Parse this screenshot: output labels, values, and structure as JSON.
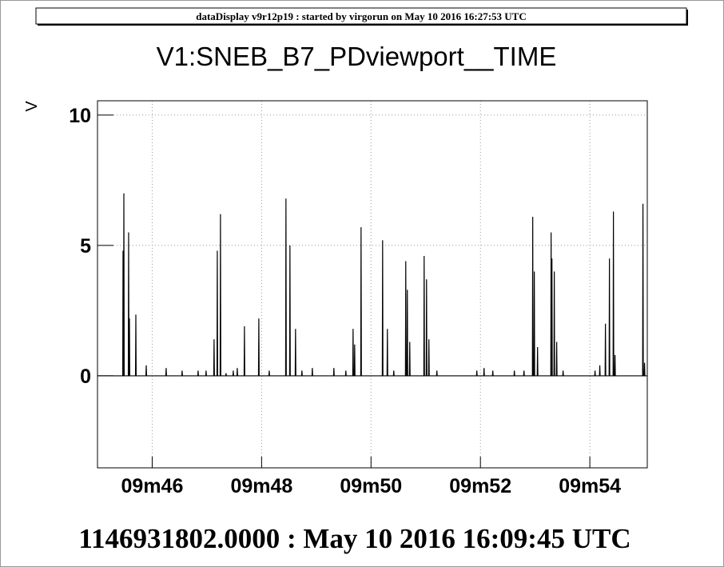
{
  "header": "dataDisplay v9r12p19 : started by virgorun on May 10 2016 16:27:53 UTC",
  "chart_data": {
    "type": "line",
    "title": "V1:SNEB_B7_PDviewport__TIME",
    "x_label": "1146931802.0000 : May 10 2016 16:09:45 UTC",
    "y_label": "V",
    "color": "#000000",
    "grid": true,
    "xlim": [
      0,
      10.05
    ],
    "ylim": [
      -3.53,
      10.55
    ],
    "xticks": [
      {
        "value": 1,
        "label": "09m46"
      },
      {
        "value": 3,
        "label": "09m48"
      },
      {
        "value": 5,
        "label": "09m50"
      },
      {
        "value": 7,
        "label": "09m52"
      },
      {
        "value": 9,
        "label": "09m54"
      }
    ],
    "yticks": [
      0,
      5,
      10
    ],
    "x": [
      0,
      0.461,
      0.467,
      0.473,
      0.476,
      0.482,
      0.488,
      0.563,
      0.569,
      0.575,
      0.578,
      0.584,
      0.59,
      0.695,
      0.701,
      0.707,
      0.885,
      0.891,
      0.897,
      1.249,
      1.255,
      1.261,
      1.541,
      1.547,
      1.553,
      1.833,
      1.839,
      1.845,
      1.979,
      1.985,
      1.991,
      2.125,
      2.131,
      2.137,
      2.184,
      2.19,
      2.196,
      2.242,
      2.248,
      2.254,
      2.344,
      2.35,
      2.356,
      2.476,
      2.482,
      2.488,
      2.549,
      2.555,
      2.561,
      2.68,
      2.686,
      2.692,
      2.943,
      2.949,
      2.955,
      3.133,
      3.139,
      3.145,
      3.439,
      3.445,
      3.451,
      3.512,
      3.518,
      3.524,
      3.614,
      3.62,
      3.626,
      3.731,
      3.737,
      3.743,
      3.921,
      3.927,
      3.933,
      4.315,
      4.321,
      4.327,
      4.534,
      4.54,
      4.546,
      4.666,
      4.672,
      4.678,
      4.695,
      4.701,
      4.707,
      4.812,
      4.818,
      4.824,
      5.206,
      5.212,
      5.218,
      5.293,
      5.299,
      5.305,
      5.41,
      5.416,
      5.422,
      5.629,
      5.635,
      5.641,
      5.658,
      5.664,
      5.67,
      5.702,
      5.708,
      5.714,
      5.965,
      5.971,
      5.977,
      6.009,
      6.015,
      6.021,
      6.052,
      6.058,
      6.064,
      6.198,
      6.204,
      6.21,
      6.928,
      6.934,
      6.94,
      7.06,
      7.066,
      7.072,
      7.22,
      7.226,
      7.232,
      7.614,
      7.62,
      7.626,
      7.79,
      7.796,
      7.802,
      7.95,
      7.956,
      7.962,
      7.979,
      7.985,
      7.991,
      8.038,
      8.044,
      8.05,
      8.286,
      8.292,
      8.298,
      8.301,
      8.307,
      8.313,
      8.344,
      8.35,
      8.356,
      8.388,
      8.394,
      8.4,
      8.505,
      8.511,
      8.517,
      9.089,
      9.095,
      9.101,
      9.176,
      9.182,
      9.188,
      9.279,
      9.285,
      9.291,
      9.352,
      9.358,
      9.364,
      9.425,
      9.431,
      9.437,
      9.454,
      9.46,
      9.466,
      9.965,
      9.971,
      9.977,
      9.994,
      10.0,
      10.006,
      10.05
    ],
    "values": [
      0,
      0,
      4.8,
      0,
      0,
      7.0,
      0,
      0,
      5.5,
      0,
      0,
      2.2,
      0,
      0,
      2.35,
      0,
      0,
      0.4,
      0,
      0,
      0.3,
      0,
      0,
      0.2,
      0,
      0,
      0.2,
      0,
      0,
      0.2,
      0,
      0,
      1.4,
      0,
      0,
      4.8,
      0,
      0,
      6.2,
      0,
      0,
      0.1,
      0,
      0,
      0.2,
      0,
      0,
      0.3,
      0,
      0,
      1.9,
      0,
      0,
      2.2,
      0,
      0,
      0.2,
      0,
      0,
      6.8,
      0,
      0,
      5.0,
      0,
      0,
      1.8,
      0,
      0,
      0.2,
      0,
      0,
      0.3,
      0,
      0,
      0.3,
      0,
      0,
      0.2,
      0,
      0,
      1.8,
      0,
      0,
      1.2,
      0,
      0,
      5.7,
      0,
      0,
      5.2,
      0,
      0,
      1.8,
      0,
      0,
      0.2,
      0,
      0,
      4.4,
      0,
      0,
      3.3,
      0,
      0,
      1.3,
      0,
      0,
      4.6,
      0,
      0,
      3.7,
      0,
      0,
      1.4,
      0,
      0,
      0.2,
      0,
      0,
      0.2,
      0,
      0,
      0.3,
      0,
      0,
      0.2,
      0,
      0,
      0.2,
      0,
      0,
      0.2,
      0,
      0,
      6.1,
      0,
      0,
      4.0,
      0,
      0,
      1.1,
      0,
      0,
      5.5,
      0,
      0,
      4.5,
      0,
      0,
      4.0,
      0,
      0,
      1.3,
      0,
      0,
      0.2,
      0,
      0,
      0.2,
      0,
      0,
      0.4,
      0,
      0,
      2.0,
      0,
      0,
      4.5,
      0,
      0,
      6.3,
      0,
      0,
      0.8,
      0,
      0,
      6.6,
      0,
      0,
      0.5,
      0,
      0
    ]
  }
}
